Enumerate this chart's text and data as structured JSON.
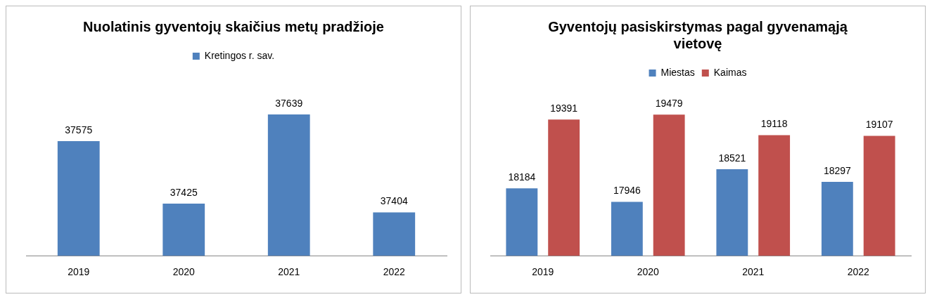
{
  "chart_data": [
    {
      "type": "bar",
      "title": "Nuolatinis gyventojų skaičius metų pradžioje",
      "categories": [
        "2019",
        "2020",
        "2021",
        "2022"
      ],
      "series": [
        {
          "name": "Kretingos r. sav.",
          "color": "#4f81bd",
          "values": [
            37575,
            37425,
            37639,
            37404
          ]
        }
      ],
      "tick_labels": "x",
      "grid": false,
      "legend": "top",
      "data_labels": true
    },
    {
      "type": "bar",
      "title": "Gyventojų pasiskirstymas pagal gyvenamąją vietovę",
      "categories": [
        "2019",
        "2020",
        "2021",
        "2022"
      ],
      "series": [
        {
          "name": "Miestas",
          "color": "#4f81bd",
          "values": [
            18184,
            17946,
            18521,
            18297
          ]
        },
        {
          "name": "Kaimas",
          "color": "#c0504d",
          "values": [
            19391,
            19479,
            19118,
            19107
          ]
        }
      ],
      "tick_labels": "x",
      "grid": false,
      "legend": "top",
      "data_labels": true
    }
  ]
}
